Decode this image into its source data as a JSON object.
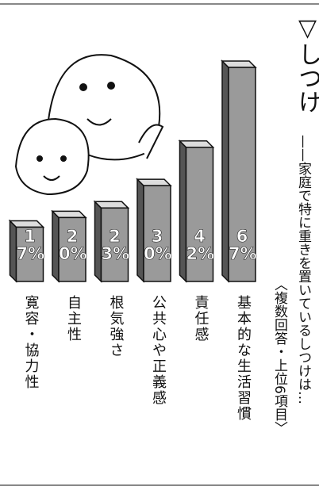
{
  "chart_data": {
    "type": "bar",
    "title": "▽しつけ",
    "subtitle": "——家庭で特に重きを置いているしつけは…",
    "note": "〈複数回答・上位6項目〉",
    "categories": [
      "基本的な生活習慣",
      "責任感",
      "公共心や正義感",
      "根気強さ",
      "自主性",
      "寛容・協力性"
    ],
    "values": [
      67,
      42,
      30,
      23,
      20,
      17
    ],
    "value_labels": [
      "67%",
      "42%",
      "30%",
      "23%",
      "20%",
      "17%"
    ],
    "color": "#9a9a9a"
  }
}
